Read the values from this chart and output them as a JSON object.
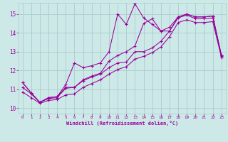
{
  "title": "",
  "xlabel": "Windchill (Refroidissement éolien,°C)",
  "ylabel": "",
  "xlim": [
    -0.5,
    23.5
  ],
  "ylim": [
    9.7,
    15.6
  ],
  "yticks": [
    10,
    11,
    12,
    13,
    14,
    15
  ],
  "xticks": [
    0,
    1,
    2,
    3,
    4,
    5,
    6,
    7,
    8,
    9,
    10,
    11,
    12,
    13,
    14,
    15,
    16,
    17,
    18,
    19,
    20,
    21,
    22,
    23
  ],
  "bg_color": "#cce9e8",
  "grid_color": "#aacccc",
  "line_color": "#990099",
  "line1_x": [
    0,
    1,
    2,
    3,
    4,
    5,
    6,
    7,
    8,
    9,
    10,
    11,
    12,
    13,
    14,
    15,
    16,
    17,
    18,
    19,
    20,
    21,
    22,
    23
  ],
  "line1_y": [
    11.35,
    10.8,
    10.3,
    10.55,
    10.6,
    11.25,
    12.4,
    12.15,
    12.25,
    12.4,
    13.0,
    15.0,
    14.45,
    15.55,
    14.8,
    14.45,
    14.1,
    14.3,
    14.85,
    15.0,
    14.85,
    14.85,
    14.9,
    12.8
  ],
  "line2_x": [
    0,
    1,
    2,
    3,
    4,
    5,
    6,
    7,
    8,
    9,
    10,
    11,
    12,
    13,
    14,
    15,
    16,
    17,
    18,
    19,
    20,
    21,
    22,
    23
  ],
  "line2_y": [
    11.35,
    10.8,
    10.3,
    10.55,
    10.6,
    11.1,
    11.1,
    11.5,
    11.7,
    11.85,
    12.5,
    12.8,
    13.0,
    13.3,
    14.5,
    14.75,
    14.1,
    14.1,
    14.85,
    15.0,
    14.85,
    14.85,
    14.9,
    12.8
  ],
  "line3_x": [
    0,
    1,
    2,
    3,
    4,
    5,
    6,
    7,
    8,
    9,
    10,
    11,
    12,
    13,
    14,
    15,
    16,
    17,
    18,
    19,
    20,
    21,
    22,
    23
  ],
  "line3_y": [
    11.1,
    10.75,
    10.3,
    10.5,
    10.55,
    11.05,
    11.1,
    11.45,
    11.65,
    11.8,
    12.15,
    12.4,
    12.45,
    13.0,
    13.0,
    13.2,
    13.55,
    14.1,
    14.8,
    14.95,
    14.75,
    14.75,
    14.8,
    12.75
  ],
  "line4_x": [
    0,
    1,
    2,
    3,
    4,
    5,
    6,
    7,
    8,
    9,
    10,
    11,
    12,
    13,
    14,
    15,
    16,
    17,
    18,
    19,
    20,
    21,
    22,
    23
  ],
  "line4_y": [
    10.85,
    10.55,
    10.25,
    10.4,
    10.45,
    10.7,
    10.75,
    11.1,
    11.3,
    11.5,
    11.8,
    12.05,
    12.2,
    12.6,
    12.75,
    12.95,
    13.25,
    13.8,
    14.55,
    14.7,
    14.55,
    14.55,
    14.6,
    12.7
  ]
}
